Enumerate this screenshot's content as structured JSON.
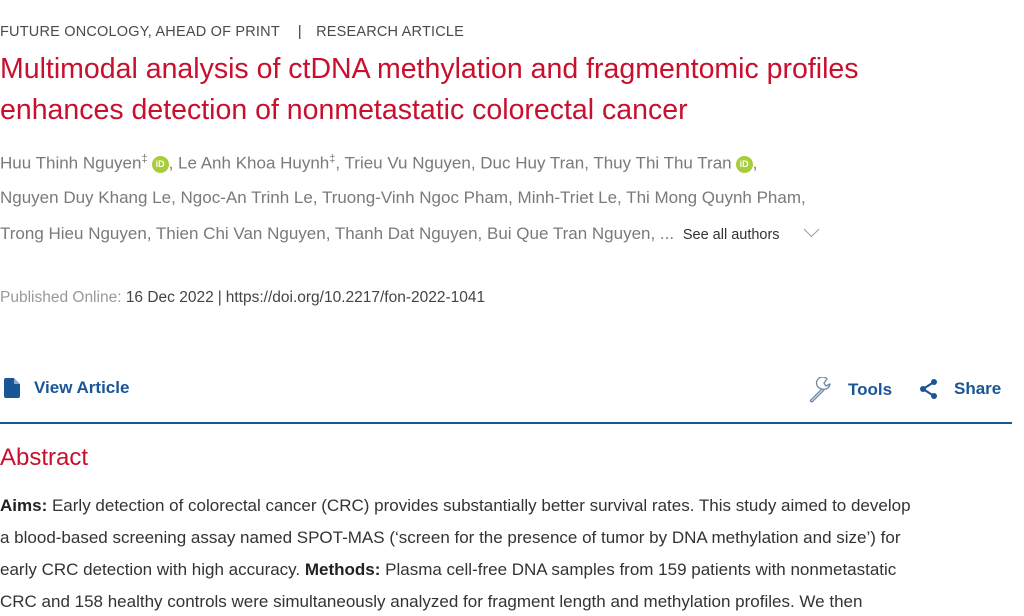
{
  "header": {
    "journal": "FUTURE ONCOLOGY,",
    "status": "AHEAD OF PRINT",
    "separator": "|",
    "article_type": "RESEARCH ARTICLE"
  },
  "title_lines": [
    "Multimodal analysis of ctDNA methylation and fragmentomic profiles",
    "enhances detection of nonmetastatic colorectal cancer"
  ],
  "authors": {
    "line1": {
      "a1": "Huu Thinh Nguyen",
      "a1_mark": "‡",
      "a2": ", Le Anh Khoa Huynh",
      "a2_mark": "‡",
      "a3": ", Trieu Vu Nguyen, Duc Huy Tran, Thuy Thi Thu Tran",
      "tail": ","
    },
    "line2": "Nguyen Duy Khang Le, Ngoc-An Trinh Le, Truong-Vinh Ngoc Pham, Minh-Triet Le, Thi Mong Quynh Pham,",
    "line3": "Trong Hieu Nguyen, Thien Chi Van Nguyen, Thanh Dat Nguyen, Bui Que Tran Nguyen, ...",
    "see_all": "See all authors",
    "orcid_label": "iD"
  },
  "publication": {
    "label": "Published Online:",
    "date": "16 Dec 2022",
    "separator": "|",
    "doi": "https://doi.org/10.2217/fon-2022-1041"
  },
  "actions": {
    "view_article": "View Article",
    "tools": "Tools",
    "share": "Share"
  },
  "abstract": {
    "heading": "Abstract",
    "lines": [
      {
        "bold": "Aims:",
        "text": " Early detection of colorectal cancer (CRC) provides substantially better survival rates. This study aimed to develop"
      },
      {
        "text": "a blood-based screening assay named SPOT-MAS (‘screen for the presence of tumor by DNA methylation and size’) for"
      },
      {
        "text": "early CRC detection with high accuracy. ",
        "bold": "Methods:",
        "text2": " Plasma cell-free DNA samples from 159 patients with nonmetastatic"
      },
      {
        "text": "CRC and 158 healthy controls were simultaneously analyzed for fragment length and methylation profiles. We then"
      }
    ]
  },
  "colors": {
    "title": "#c8102e",
    "link": "#1a5596",
    "orcid": "#a6ce39"
  }
}
